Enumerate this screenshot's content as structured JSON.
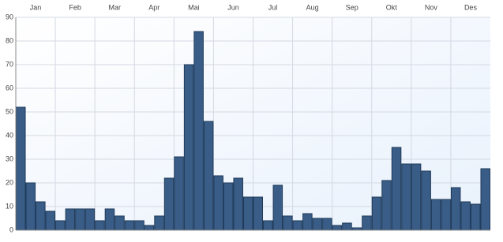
{
  "chart_data": {
    "type": "bar",
    "months": [
      "Jan",
      "Feb",
      "Mar",
      "Apr",
      "Mai",
      "Jun",
      "Jul",
      "Aug",
      "Sep",
      "Okt",
      "Nov",
      "Des"
    ],
    "values": [
      52,
      20,
      12,
      8,
      4,
      9,
      9,
      9,
      4,
      9,
      6,
      4,
      4,
      2,
      6,
      22,
      31,
      70,
      84,
      46,
      23,
      20,
      22,
      14,
      14,
      4,
      19,
      6,
      4,
      7,
      5,
      5,
      2,
      3,
      1,
      6,
      14,
      21,
      35,
      28,
      28,
      25,
      13,
      13,
      18,
      12,
      11,
      26
    ],
    "color": "#395d87",
    "ylim": [
      0,
      90
    ],
    "yticks": [
      0,
      10,
      20,
      30,
      40,
      50,
      60,
      70,
      80,
      90
    ],
    "grid": true
  }
}
